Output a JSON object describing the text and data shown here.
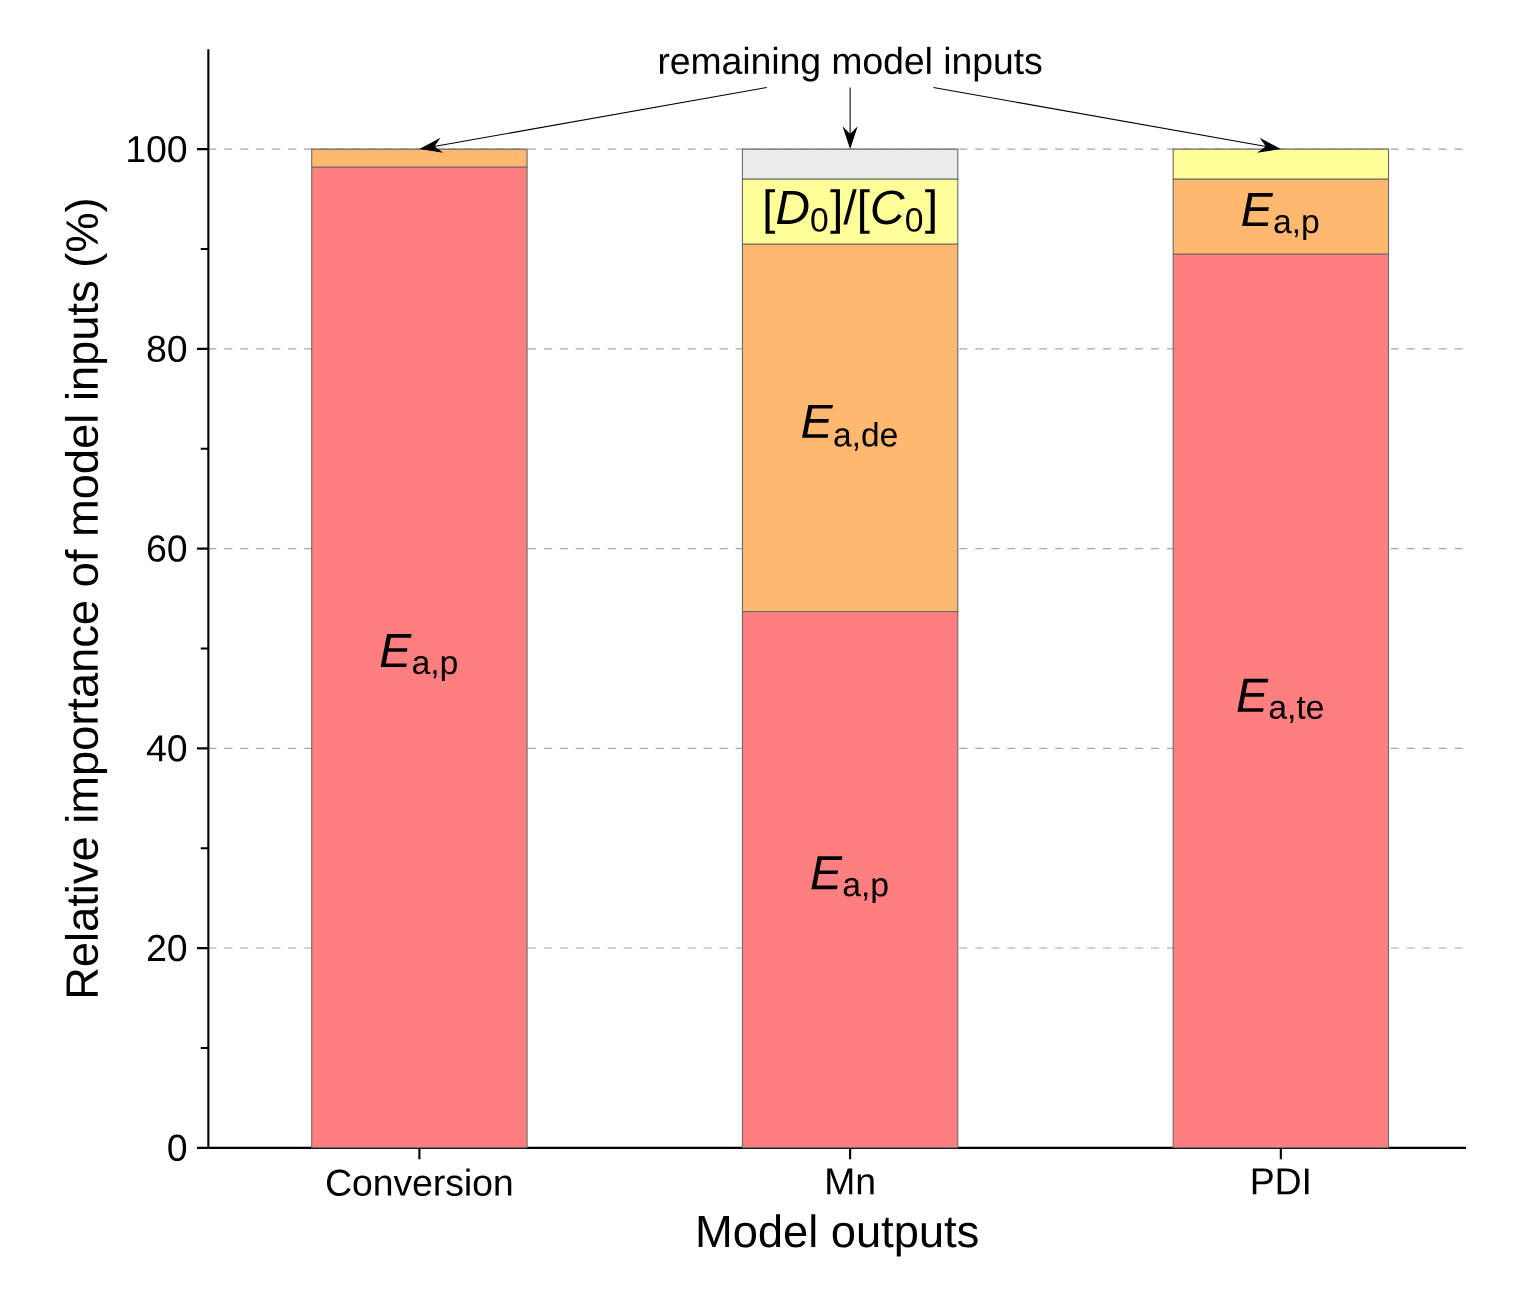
{
  "chart_data": {
    "type": "bar",
    "stacked": true,
    "xlabel": "Model outputs",
    "ylabel": "Relative importance of model inputs (%)",
    "categories": [
      "Conversion",
      "Mn",
      "PDI"
    ],
    "series": [
      {
        "name": "*E*$_{a,te}$",
        "color": "#ff7f80",
        "values": [
          null,
          null,
          89.5
        ]
      },
      {
        "name": "*E*$_{a,p}$",
        "colors": [
          "#ff7f80",
          "#ff7f80",
          "#ffb870"
        ],
        "values": [
          98.2,
          53.7,
          7.5
        ]
      },
      {
        "name": "*E*$_{a,de}$",
        "color": "#ffb870",
        "values": [
          null,
          36.8,
          null
        ]
      },
      {
        "name": "[*D*$_{0}$]/[*C*$_{0}$]",
        "color": "#ffff99",
        "values": [
          null,
          6.5,
          null
        ]
      },
      {
        "colors": [
          "#ffb870",
          "#ebebeb",
          "#ffff99"
        ],
        "values": [
          1.8,
          3.0,
          3.0
        ]
      }
    ],
    "ylim": [
      0,
      110
    ],
    "yticks": [
      0,
      20,
      40,
      60,
      80,
      100
    ],
    "grid": "y",
    "annotations": [
      {
        "text": "remaining model inputs",
        "y": 100
      }
    ]
  }
}
